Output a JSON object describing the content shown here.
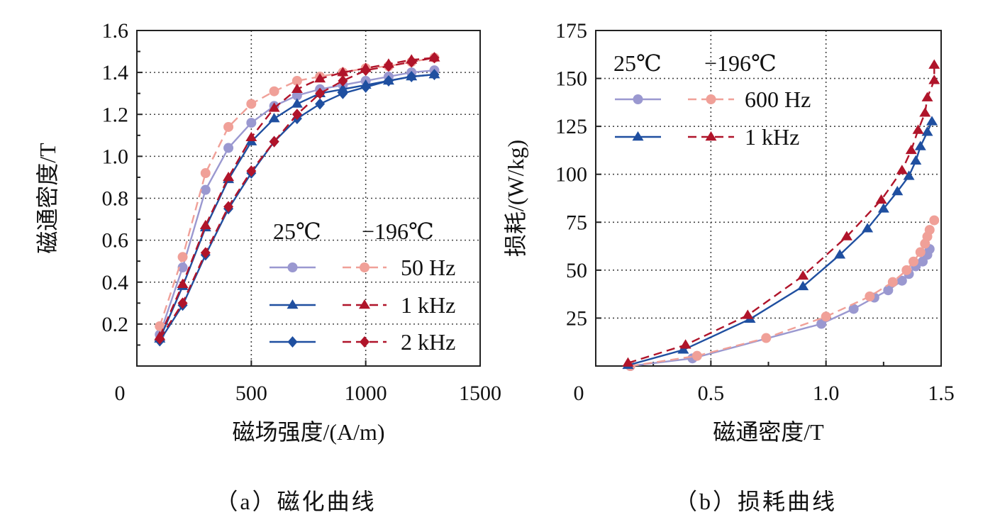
{
  "colors": {
    "c25_light": "#9a98d0",
    "c196_light": "#f0a098",
    "c25_dark": "#1f4fa0",
    "c196_dark": "#b0142a"
  },
  "chart_data": [
    {
      "type": "line",
      "caption": "（a）磁化曲线",
      "xlabel": "磁场强度/(A/m)",
      "ylabel": "磁通密度/T",
      "xlim": [
        0,
        1500
      ],
      "ylim": [
        0,
        1.6
      ],
      "xticks": [
        "0",
        "500",
        "1000",
        "1500"
      ],
      "yticks": [
        "0.2",
        "0.4",
        "0.6",
        "0.8",
        "1.0",
        "1.2",
        "1.4",
        "1.6"
      ],
      "grid": true,
      "legend": {
        "placement": "bottom-right",
        "header": [
          "25℃",
          "−196℃"
        ],
        "rows": [
          "50 Hz",
          "1 kHz",
          "2 kHz"
        ]
      },
      "x": [
        100,
        200,
        300,
        400,
        500,
        600,
        700,
        800,
        900,
        1000,
        1100,
        1200,
        1300
      ],
      "series": [
        {
          "temp": "25℃",
          "freq": "50 Hz",
          "marker": "circle",
          "style": "solid",
          "color": "#9a98d0",
          "values": [
            0.15,
            0.47,
            0.84,
            1.04,
            1.16,
            1.24,
            1.29,
            1.32,
            1.34,
            1.36,
            1.38,
            1.4,
            1.41
          ]
        },
        {
          "temp": "−196℃",
          "freq": "50 Hz",
          "marker": "circle",
          "style": "dashed",
          "color": "#f0a098",
          "values": [
            0.19,
            0.52,
            0.92,
            1.14,
            1.25,
            1.31,
            1.36,
            1.38,
            1.4,
            1.42,
            1.43,
            1.45,
            1.47
          ]
        },
        {
          "temp": "25℃",
          "freq": "1 kHz",
          "marker": "triangle",
          "style": "solid",
          "color": "#1f4fa0",
          "values": [
            0.13,
            0.38,
            0.66,
            0.89,
            1.07,
            1.18,
            1.25,
            1.3,
            1.32,
            1.34,
            1.36,
            1.38,
            1.39
          ]
        },
        {
          "temp": "−196℃",
          "freq": "1 kHz",
          "marker": "triangle",
          "style": "dashed",
          "color": "#b0142a",
          "values": [
            0.14,
            0.39,
            0.67,
            0.9,
            1.09,
            1.23,
            1.32,
            1.37,
            1.4,
            1.42,
            1.44,
            1.46,
            1.47
          ]
        },
        {
          "temp": "25℃",
          "freq": "2 kHz",
          "marker": "diamond",
          "style": "solid",
          "color": "#1f4fa0",
          "values": [
            0.12,
            0.29,
            0.53,
            0.75,
            0.92,
            1.07,
            1.18,
            1.25,
            1.3,
            1.33,
            1.36,
            1.38,
            1.39
          ]
        },
        {
          "temp": "−196℃",
          "freq": "2 kHz",
          "marker": "diamond",
          "style": "dashed",
          "color": "#b0142a",
          "values": [
            0.13,
            0.3,
            0.54,
            0.76,
            0.93,
            1.07,
            1.2,
            1.3,
            1.36,
            1.41,
            1.43,
            1.45,
            1.47
          ]
        }
      ]
    },
    {
      "type": "line",
      "caption": "（b）损耗曲线",
      "xlabel": "磁通密度/T",
      "ylabel": "损耗/(W/kg)",
      "xlim": [
        0,
        1.5
      ],
      "ylim": [
        0,
        175
      ],
      "xticks": [
        "0",
        "0.5",
        "1.0",
        "1.5"
      ],
      "yticks": [
        "25",
        "50",
        "75",
        "100",
        "125",
        "150",
        "175"
      ],
      "grid": true,
      "legend": {
        "placement": "top-left",
        "header": [
          "25℃",
          "−196℃"
        ],
        "rows": [
          "600 Hz",
          "1 kHz"
        ]
      },
      "series": [
        {
          "temp": "25℃",
          "freq": "600 Hz",
          "marker": "circle",
          "style": "solid",
          "color": "#9a98d0",
          "points": [
            [
              0.15,
              0
            ],
            [
              0.42,
              4
            ],
            [
              0.98,
              22
            ],
            [
              1.12,
              29.8
            ],
            [
              1.21,
              35.7
            ],
            [
              1.27,
              39.5
            ],
            [
              1.33,
              44.5
            ],
            [
              1.36,
              48
            ],
            [
              1.39,
              52
            ],
            [
              1.42,
              54.5
            ],
            [
              1.44,
              58
            ],
            [
              1.45,
              61
            ]
          ]
        },
        {
          "temp": "−196℃",
          "freq": "600 Hz",
          "marker": "circle",
          "style": "dashed",
          "color": "#f0a098",
          "points": [
            [
              0.15,
              0
            ],
            [
              0.44,
              5.3
            ],
            [
              0.74,
              14.6
            ],
            [
              1.0,
              25.8
            ],
            [
              1.19,
              36.3
            ],
            [
              1.29,
              43.8
            ],
            [
              1.35,
              50
            ],
            [
              1.38,
              54.5
            ],
            [
              1.41,
              59.4
            ],
            [
              1.43,
              63.8
            ],
            [
              1.44,
              67.5
            ],
            [
              1.45,
              71
            ],
            [
              1.47,
              76
            ]
          ]
        },
        {
          "temp": "25℃",
          "freq": "1 kHz",
          "marker": "triangle",
          "style": "solid",
          "color": "#1f4fa0",
          "points": [
            [
              0.14,
              0.4
            ],
            [
              0.38,
              8.4
            ],
            [
              0.67,
              24.5
            ],
            [
              0.9,
              41.5
            ],
            [
              1.06,
              58
            ],
            [
              1.18,
              71.7
            ],
            [
              1.25,
              82
            ],
            [
              1.31,
              91
            ],
            [
              1.36,
              99
            ],
            [
              1.39,
              107
            ],
            [
              1.41,
              114.5
            ],
            [
              1.44,
              122
            ],
            [
              1.46,
              127.5
            ]
          ]
        },
        {
          "temp": "−196℃",
          "freq": "1 kHz",
          "marker": "triangle",
          "style": "dashed",
          "color": "#b0142a",
          "points": [
            [
              0.14,
              1.6
            ],
            [
              0.39,
              11
            ],
            [
              0.66,
              26.5
            ],
            [
              0.9,
              47
            ],
            [
              1.09,
              67.5
            ],
            [
              1.24,
              86.6
            ],
            [
              1.33,
              102
            ],
            [
              1.37,
              112.5
            ],
            [
              1.4,
              123
            ],
            [
              1.43,
              132
            ],
            [
              1.44,
              140
            ],
            [
              1.47,
              149
            ],
            [
              1.47,
              157
            ]
          ]
        }
      ]
    }
  ]
}
